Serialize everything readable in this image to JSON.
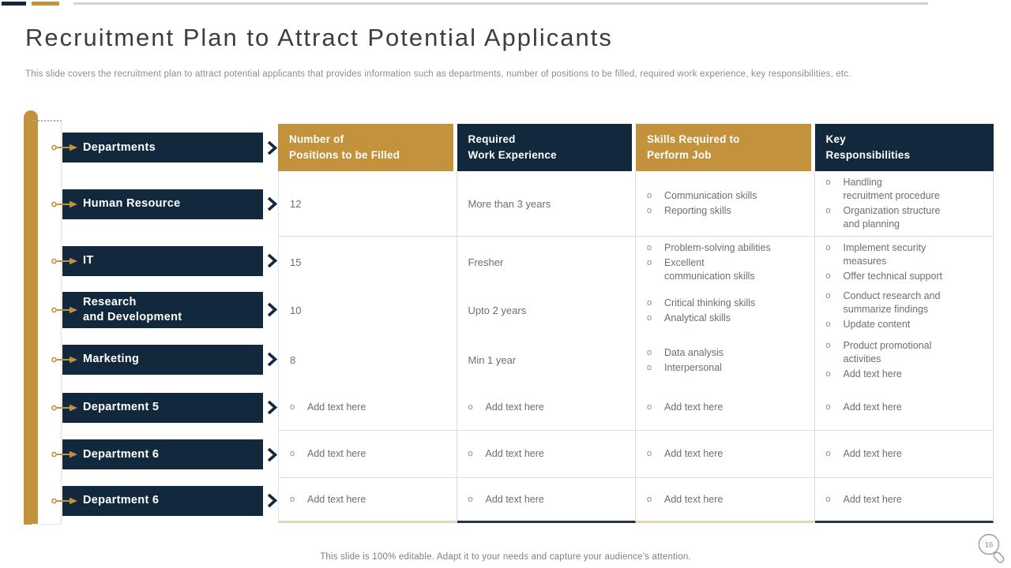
{
  "page": {
    "title": "Recruitment Plan to Attract Potential Applicants",
    "subtitle": "This slide covers the recruitment plan to attract potential applicants that provides information such as departments, number of positions to be filled, required work experience, key responsibilities, etc.",
    "footer": "This slide is 100% editable. Adapt it to your needs and capture your audience's attention.",
    "page_number": "16"
  },
  "colors": {
    "gold": "#C2923D",
    "navy": "#12293D",
    "body_text": "#6E6E6E",
    "grid_border": "#DCDCDC",
    "bottom_line_gold": "#E6D8B6",
    "bottom_line_navy": "#24374C"
  },
  "sidebar": {
    "items": [
      {
        "label": "Departments"
      },
      {
        "label": "Human Resource"
      },
      {
        "label": "IT"
      },
      {
        "label": "Research\nand Development"
      },
      {
        "label": "Marketing"
      },
      {
        "label": "Department 5"
      },
      {
        "label": "Department 6"
      },
      {
        "label": "Department 6"
      }
    ]
  },
  "table": {
    "headers": [
      {
        "lines": [
          "Number of",
          "Positions to be Filled"
        ],
        "style": "gold"
      },
      {
        "lines": [
          "Required",
          "Work Experience"
        ],
        "style": "navy"
      },
      {
        "lines": [
          "Skills Required to",
          "Perform Job"
        ],
        "style": "gold"
      },
      {
        "lines": [
          "Key",
          "Responsibilities"
        ],
        "style": "navy"
      }
    ],
    "rows": [
      {
        "cells": [
          {
            "text": "12"
          },
          {
            "text": "More than 3 years"
          },
          {
            "bullets": [
              "Communication skills",
              "Reporting skills"
            ]
          },
          {
            "bullets": [
              "Handling\nrecruitment procedure",
              "Organization structure\nand planning"
            ]
          }
        ]
      },
      {
        "cells": [
          {
            "text": "15"
          },
          {
            "text": "Fresher"
          },
          {
            "bullets": [
              "Problem-solving abilities",
              "Excellent\ncommunication skills"
            ]
          },
          {
            "bullets": [
              "Implement security\nmeasures",
              "Offer technical support"
            ]
          }
        ]
      },
      {
        "cells": [
          {
            "text": "10"
          },
          {
            "text": "Upto 2 years"
          },
          {
            "bullets": [
              "Critical thinking skills",
              "Analytical skills"
            ]
          },
          {
            "bullets": [
              "Conduct research and\nsummarize findings",
              "Update content"
            ]
          }
        ]
      },
      {
        "cells": [
          {
            "text": "8"
          },
          {
            "text": "Min 1 year"
          },
          {
            "bullets": [
              "Data analysis",
              "Interpersonal"
            ]
          },
          {
            "bullets": [
              "Product promotional\nactivities",
              "Add text here"
            ]
          }
        ]
      },
      {
        "cells": [
          {
            "bullets": [
              "Add text here"
            ]
          },
          {
            "bullets": [
              "Add text here"
            ]
          },
          {
            "bullets": [
              "Add text here"
            ]
          },
          {
            "bullets": [
              "Add text here"
            ]
          }
        ]
      },
      {
        "cells": [
          {
            "bullets": [
              "Add text here"
            ]
          },
          {
            "bullets": [
              "Add text here"
            ]
          },
          {
            "bullets": [
              "Add text here"
            ]
          },
          {
            "bullets": [
              "Add text here"
            ]
          }
        ]
      },
      {
        "cells": [
          {
            "bullets": [
              "Add text here"
            ]
          },
          {
            "bullets": [
              "Add text here"
            ]
          },
          {
            "bullets": [
              "Add text here"
            ]
          },
          {
            "bullets": [
              "Add text here"
            ]
          }
        ]
      }
    ]
  }
}
